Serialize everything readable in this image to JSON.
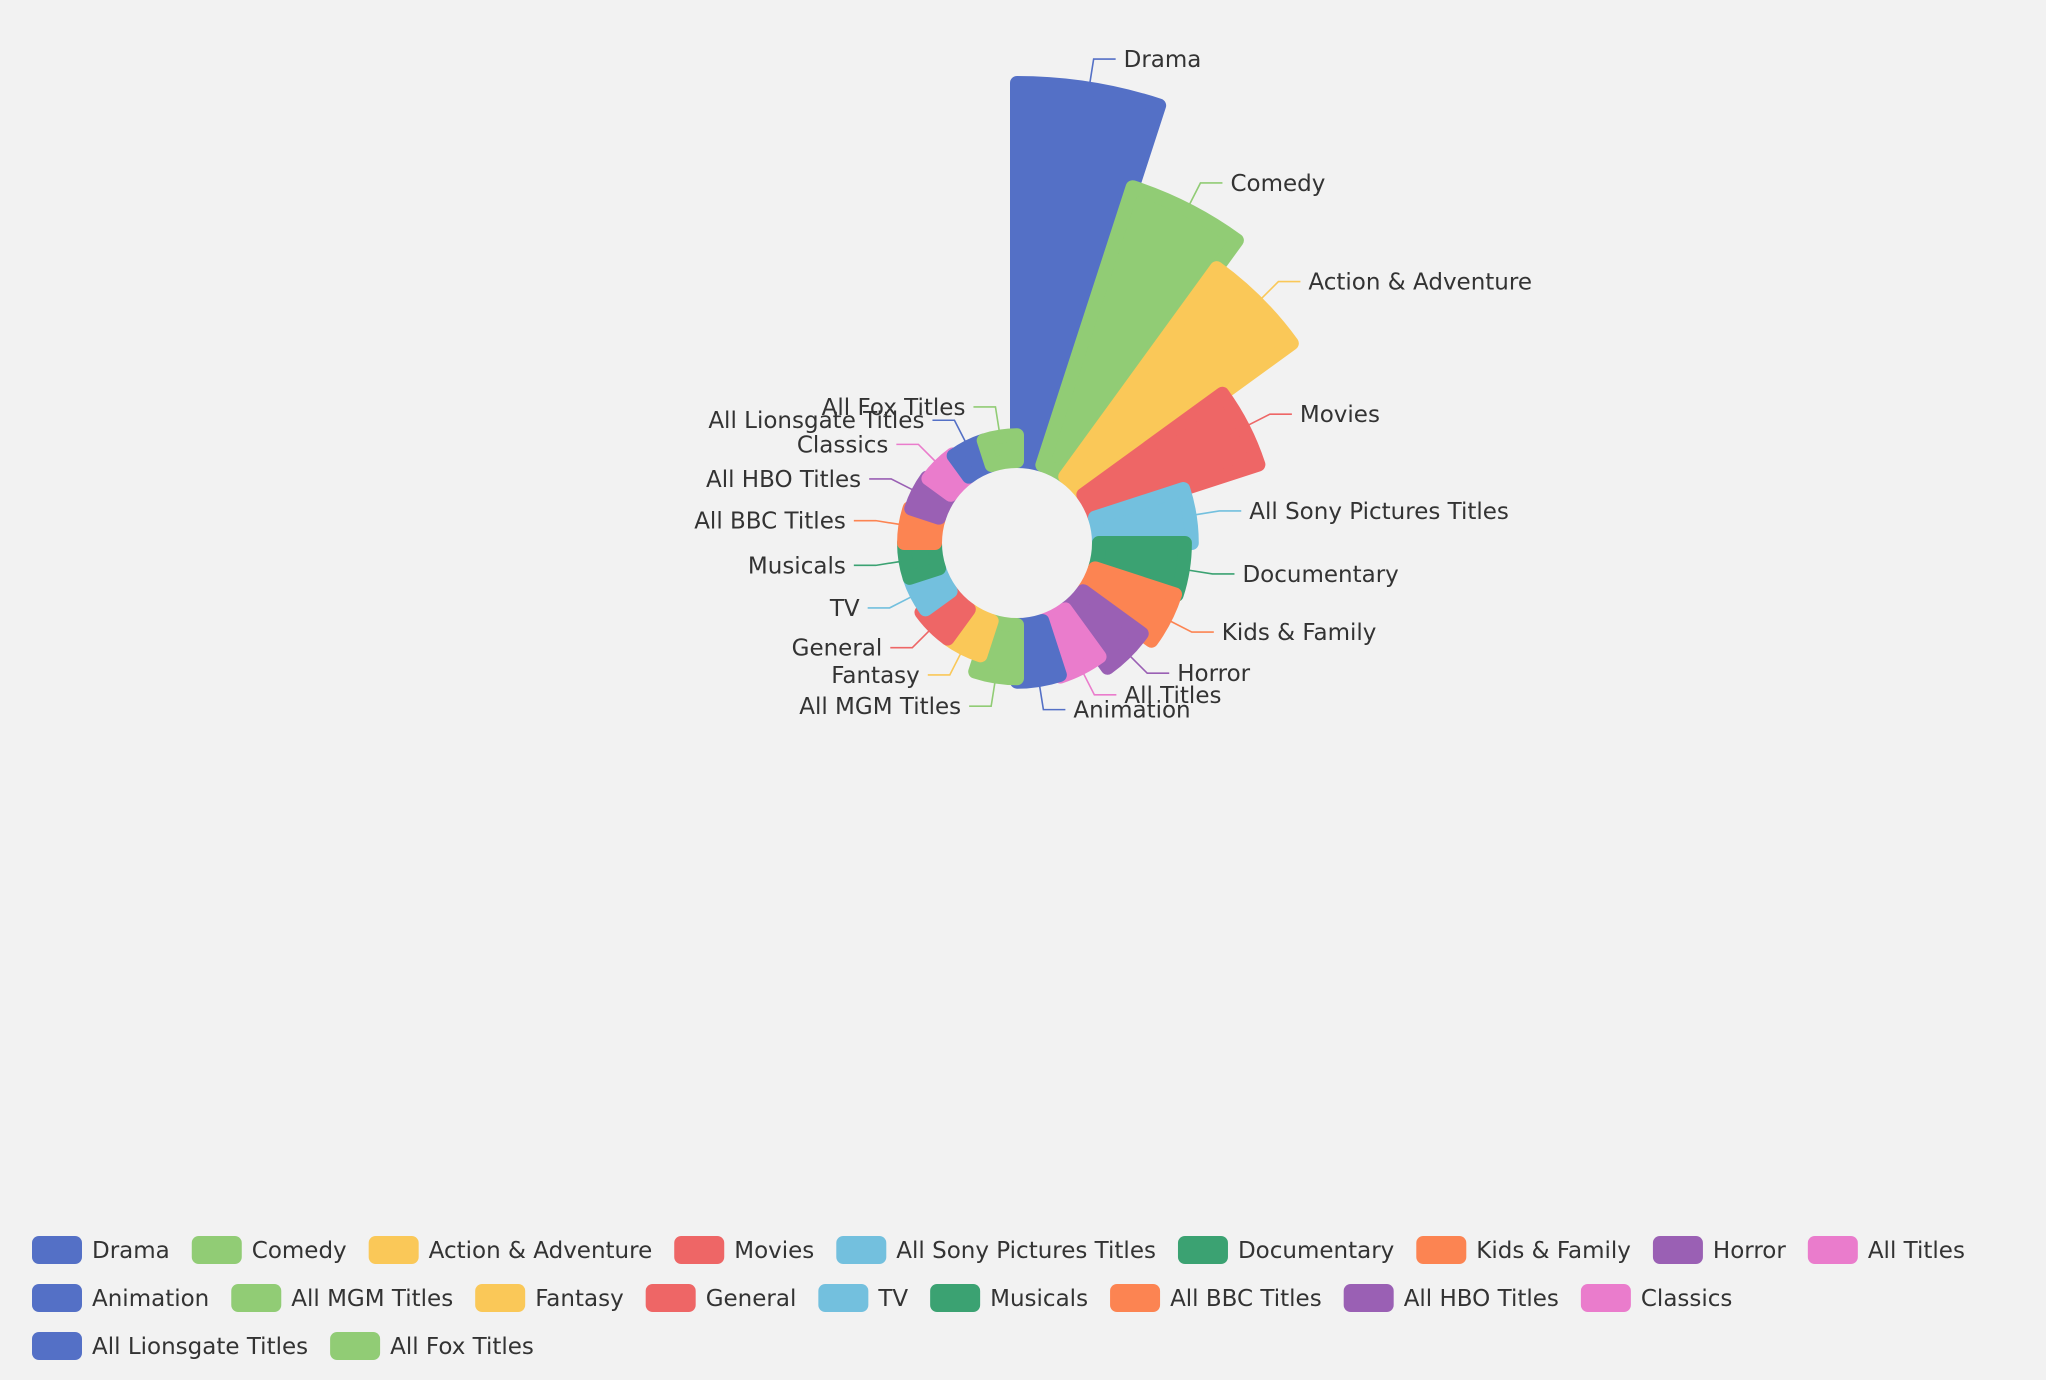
{
  "chart_data": {
    "type": "pie",
    "subtype": "nightingale-rose",
    "categories": [
      "Drama",
      "Comedy",
      "Action & Adventure",
      "Movies",
      "All Sony Pictures Titles",
      "Documentary",
      "Kids & Family",
      "Horror",
      "All Titles",
      "Animation",
      "All MGM Titles",
      "Fantasy",
      "General",
      "TV",
      "Musicals",
      "All BBC Titles",
      "All HBO Titles",
      "Classics",
      "All Lionsgate Titles",
      "All Fox Titles"
    ],
    "values": [
      440,
      340,
      300,
      200,
      108,
      100,
      98,
      84,
      68,
      66,
      62,
      42,
      42,
      36,
      36,
      36,
      34,
      32,
      30,
      30
    ],
    "colors": [
      "#5470c6",
      "#91cc75",
      "#fac858",
      "#ee6666",
      "#73c0de",
      "#3ba272",
      "#fc8452",
      "#9a60b4",
      "#ea7ccc",
      "#5470c6",
      "#91cc75",
      "#fac858",
      "#ee6666",
      "#73c0de",
      "#3ba272",
      "#fc8452",
      "#9a60b4",
      "#ea7ccc",
      "#5470c6",
      "#91cc75"
    ],
    "legend_position": "bottom"
  }
}
